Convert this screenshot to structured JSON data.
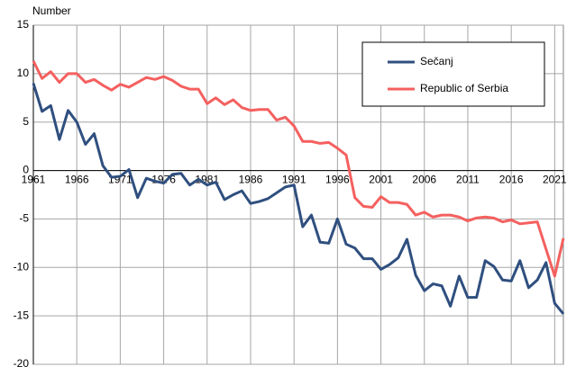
{
  "chart_data": {
    "type": "line",
    "y_label": "Number",
    "x": [
      1961,
      1962,
      1963,
      1964,
      1965,
      1966,
      1967,
      1968,
      1969,
      1970,
      1971,
      1972,
      1973,
      1974,
      1975,
      1976,
      1977,
      1978,
      1979,
      1980,
      1981,
      1982,
      1983,
      1984,
      1985,
      1986,
      1987,
      1988,
      1989,
      1990,
      1991,
      1992,
      1993,
      1994,
      1995,
      1996,
      1997,
      1998,
      1999,
      2000,
      2001,
      2002,
      2003,
      2004,
      2005,
      2006,
      2007,
      2008,
      2009,
      2010,
      2011,
      2012,
      2013,
      2014,
      2015,
      2016,
      2017,
      2018,
      2019,
      2020,
      2021,
      2022
    ],
    "series": [
      {
        "name": "Sečanj",
        "color": "#2f4f7f",
        "values": [
          9.0,
          6.1,
          6.7,
          3.2,
          6.2,
          5.0,
          2.7,
          3.8,
          0.5,
          -0.7,
          -0.6,
          0.1,
          -2.8,
          -0.8,
          -1.1,
          -1.3,
          -0.4,
          -0.3,
          -1.5,
          -0.9,
          -1.5,
          -1.2,
          -3.0,
          -2.5,
          -2.1,
          -3.4,
          -3.2,
          -2.9,
          -2.3,
          -1.7,
          -1.5,
          -5.8,
          -4.6,
          -7.4,
          -7.5,
          -5.0,
          -7.6,
          -8.0,
          -9.1,
          -9.1,
          -10.2,
          -9.7,
          -9.0,
          -7.1,
          -10.8,
          -12.4,
          -11.7,
          -11.9,
          -14.0,
          -10.9,
          -13.1,
          -13.1,
          -9.3,
          -9.9,
          -11.3,
          -11.4,
          -9.3,
          -12.1,
          -11.3,
          -9.5,
          -13.7,
          -14.8
        ]
      },
      {
        "name": "Republic of Serbia",
        "color": "#f4605f",
        "values": [
          11.3,
          9.5,
          10.2,
          9.1,
          10.0,
          10.0,
          9.1,
          9.4,
          8.8,
          8.3,
          8.9,
          8.6,
          9.1,
          9.6,
          9.4,
          9.7,
          9.3,
          8.7,
          8.4,
          8.4,
          6.9,
          7.5,
          6.8,
          7.3,
          6.5,
          6.2,
          6.3,
          6.3,
          5.2,
          5.5,
          4.6,
          3.0,
          3.0,
          2.8,
          2.9,
          2.3,
          1.6,
          -2.8,
          -3.7,
          -3.8,
          -2.7,
          -3.3,
          -3.3,
          -3.5,
          -4.6,
          -4.3,
          -4.8,
          -4.6,
          -4.6,
          -4.8,
          -5.2,
          -4.9,
          -4.8,
          -4.9,
          -5.3,
          -5.1,
          -5.5,
          -5.4,
          -5.3,
          -8.1,
          -10.9,
          -7.0
        ]
      }
    ],
    "xlim": [
      1961,
      2022
    ],
    "xticks": [
      1961,
      1966,
      1971,
      1976,
      1981,
      1986,
      1991,
      1996,
      2001,
      2006,
      2011,
      2016,
      2021
    ],
    "ylim": [
      -20,
      15
    ],
    "yticks": [
      -20,
      -15,
      -10,
      -5,
      0,
      5,
      10,
      15
    ],
    "grid": true,
    "legend": "upper right"
  }
}
